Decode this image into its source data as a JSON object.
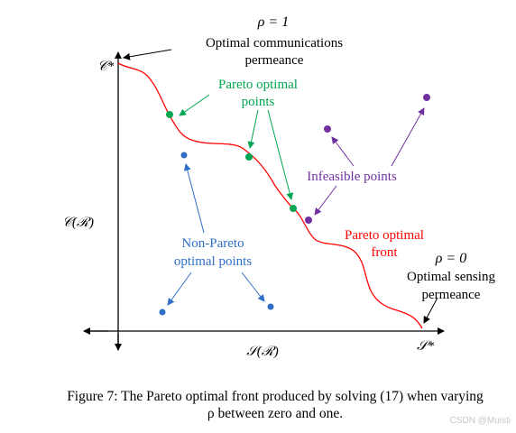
{
  "diagram": {
    "rho_one": "ρ = 1",
    "optimal_comm_line1": "Optimal communications",
    "optimal_comm_line2": "permeance",
    "c_star": "𝒞*",
    "pareto_points_line1": "Pareto optimal",
    "pareto_points_line2": "points",
    "infeasible_points": "Infeasible  points",
    "y_axis_label": "𝒞(ℛ)",
    "non_pareto_line1": "Non-Pareto",
    "non_pareto_line2": "optimal points",
    "pareto_front_line1": "Pareto optimal",
    "pareto_front_line2": "front",
    "rho_zero": "ρ = 0",
    "optimal_sensing_line1": "Optimal sensing",
    "optimal_sensing_line2": "permeance",
    "x_axis_label": "𝒮(ℛ)",
    "s_star": "𝒮*",
    "colors": {
      "pareto_green": "#00a651",
      "front_red": "#ff0000",
      "infeasible_purple": "#7030a0",
      "non_pareto_blue": "#2f6fc7",
      "axis_black": "#000000"
    }
  },
  "caption": {
    "line1": "Figure 7: The Pareto optimal front produced by solving (17) when varying",
    "line2": "ρ between zero and one."
  },
  "watermark": "CSDN @Muisti"
}
